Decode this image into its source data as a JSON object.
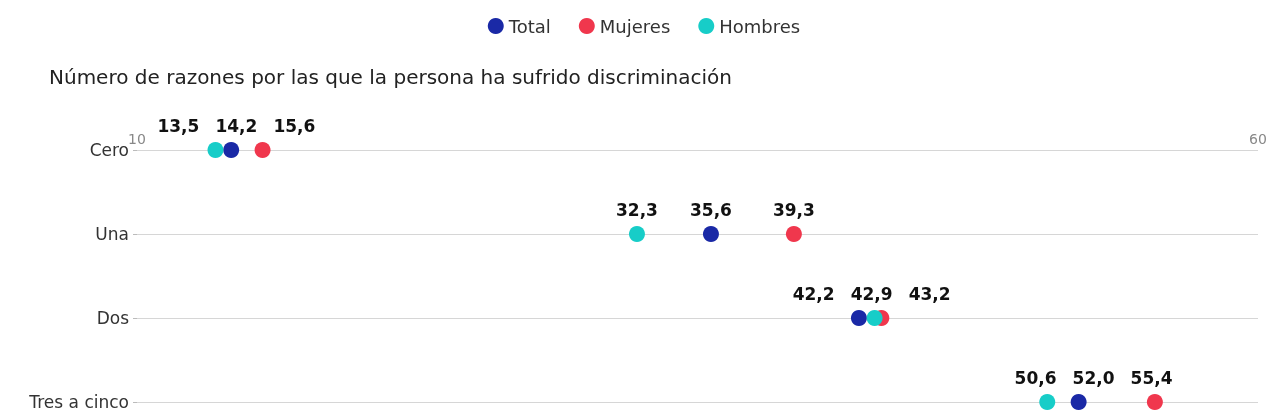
{
  "chart_data": {
    "type": "scatter",
    "orientation": "horizontal",
    "title": "Número de razones por las que la persona ha sufrido discriminación",
    "categories": [
      "Cero",
      "Una",
      "Dos",
      "Tres a cinco"
    ],
    "series": [
      {
        "name": "Total",
        "color": "#1a29a6",
        "values": [
          14.2,
          35.6,
          42.2,
          52.0
        ],
        "value_labels": [
          "14,2",
          "35,6",
          "42,2",
          "52,0"
        ]
      },
      {
        "name": "Mujeres",
        "color": "#f0374d",
        "values": [
          15.6,
          39.3,
          43.2,
          55.4
        ],
        "value_labels": [
          "15,6",
          "39,3",
          "43,2",
          "55,4"
        ]
      },
      {
        "name": "Hombres",
        "color": "#17cdc8",
        "values": [
          13.5,
          32.3,
          42.9,
          50.6
        ],
        "value_labels": [
          "13,5",
          "32,3",
          "42,9",
          "50,6"
        ]
      }
    ],
    "xlim": [
      10,
      60
    ],
    "xticks": [
      10,
      60
    ],
    "grid": "y",
    "legend": "top",
    "marker": "circle"
  }
}
